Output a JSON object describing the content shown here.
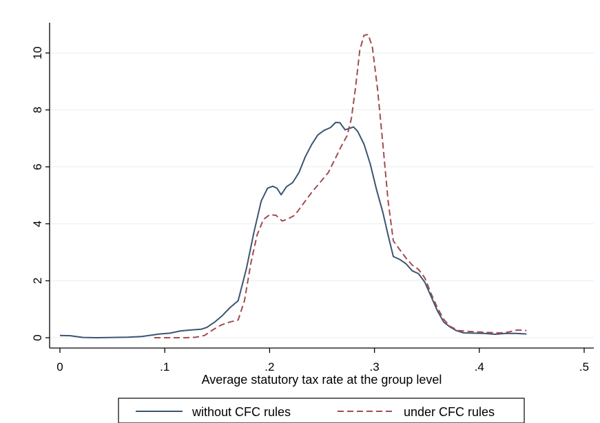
{
  "chart_data": {
    "type": "line",
    "title": "",
    "xlabel": "Average statutory tax rate at the group level",
    "ylabel": "",
    "xlim": [
      0,
      0.5
    ],
    "ylim": [
      0,
      11
    ],
    "xticks": [
      {
        "value": 0,
        "label": "0"
      },
      {
        "value": 0.1,
        "label": ".1"
      },
      {
        "value": 0.2,
        "label": ".2"
      },
      {
        "value": 0.3,
        "label": ".3"
      },
      {
        "value": 0.4,
        "label": ".4"
      },
      {
        "value": 0.5,
        "label": ".5"
      }
    ],
    "yticks": [
      {
        "value": 0,
        "label": "0"
      },
      {
        "value": 2,
        "label": "2"
      },
      {
        "value": 4,
        "label": "4"
      },
      {
        "value": 6,
        "label": "6"
      },
      {
        "value": 8,
        "label": "8"
      },
      {
        "value": 10,
        "label": "10"
      }
    ],
    "grid": "horizontal",
    "legend_position": "bottom",
    "series": [
      {
        "name": "without CFC rules",
        "color": "#3a5470",
        "dash": "solid",
        "points": [
          [
            0.0,
            0.08
          ],
          [
            0.01,
            0.07
          ],
          [
            0.022,
            0.01
          ],
          [
            0.035,
            0.0
          ],
          [
            0.05,
            0.01
          ],
          [
            0.065,
            0.02
          ],
          [
            0.078,
            0.04
          ],
          [
            0.085,
            0.08
          ],
          [
            0.095,
            0.13
          ],
          [
            0.105,
            0.16
          ],
          [
            0.115,
            0.24
          ],
          [
            0.125,
            0.27
          ],
          [
            0.135,
            0.3
          ],
          [
            0.14,
            0.36
          ],
          [
            0.148,
            0.56
          ],
          [
            0.155,
            0.78
          ],
          [
            0.162,
            1.05
          ],
          [
            0.17,
            1.3
          ],
          [
            0.178,
            2.45
          ],
          [
            0.185,
            3.7
          ],
          [
            0.192,
            4.8
          ],
          [
            0.198,
            5.25
          ],
          [
            0.203,
            5.32
          ],
          [
            0.207,
            5.25
          ],
          [
            0.211,
            5.02
          ],
          [
            0.216,
            5.3
          ],
          [
            0.222,
            5.45
          ],
          [
            0.228,
            5.8
          ],
          [
            0.234,
            6.35
          ],
          [
            0.24,
            6.78
          ],
          [
            0.246,
            7.12
          ],
          [
            0.252,
            7.28
          ],
          [
            0.258,
            7.38
          ],
          [
            0.263,
            7.56
          ],
          [
            0.267,
            7.55
          ],
          [
            0.272,
            7.3
          ],
          [
            0.276,
            7.35
          ],
          [
            0.28,
            7.4
          ],
          [
            0.284,
            7.25
          ],
          [
            0.29,
            6.8
          ],
          [
            0.296,
            6.1
          ],
          [
            0.302,
            5.2
          ],
          [
            0.308,
            4.4
          ],
          [
            0.313,
            3.6
          ],
          [
            0.318,
            2.85
          ],
          [
            0.324,
            2.75
          ],
          [
            0.33,
            2.6
          ],
          [
            0.336,
            2.35
          ],
          [
            0.342,
            2.25
          ],
          [
            0.348,
            1.95
          ],
          [
            0.354,
            1.45
          ],
          [
            0.36,
            0.95
          ],
          [
            0.366,
            0.55
          ],
          [
            0.372,
            0.38
          ],
          [
            0.378,
            0.25
          ],
          [
            0.385,
            0.17
          ],
          [
            0.395,
            0.16
          ],
          [
            0.405,
            0.15
          ],
          [
            0.415,
            0.12
          ],
          [
            0.425,
            0.15
          ],
          [
            0.435,
            0.15
          ],
          [
            0.445,
            0.13
          ]
        ]
      },
      {
        "name": "under CFC rules",
        "color": "#a24a4e",
        "dash": "dashed",
        "points": [
          [
            0.09,
            0.0
          ],
          [
            0.1,
            0.0
          ],
          [
            0.11,
            0.0
          ],
          [
            0.12,
            0.0
          ],
          [
            0.13,
            0.02
          ],
          [
            0.138,
            0.08
          ],
          [
            0.146,
            0.28
          ],
          [
            0.154,
            0.45
          ],
          [
            0.162,
            0.55
          ],
          [
            0.17,
            0.62
          ],
          [
            0.176,
            1.3
          ],
          [
            0.182,
            2.6
          ],
          [
            0.188,
            3.6
          ],
          [
            0.194,
            4.15
          ],
          [
            0.2,
            4.32
          ],
          [
            0.206,
            4.3
          ],
          [
            0.212,
            4.1
          ],
          [
            0.218,
            4.18
          ],
          [
            0.224,
            4.3
          ],
          [
            0.232,
            4.7
          ],
          [
            0.24,
            5.1
          ],
          [
            0.248,
            5.45
          ],
          [
            0.256,
            5.8
          ],
          [
            0.262,
            6.25
          ],
          [
            0.268,
            6.7
          ],
          [
            0.274,
            7.1
          ],
          [
            0.278,
            7.7
          ],
          [
            0.282,
            8.8
          ],
          [
            0.286,
            10.1
          ],
          [
            0.29,
            10.62
          ],
          [
            0.294,
            10.65
          ],
          [
            0.298,
            10.2
          ],
          [
            0.303,
            8.7
          ],
          [
            0.308,
            6.8
          ],
          [
            0.313,
            4.8
          ],
          [
            0.318,
            3.4
          ],
          [
            0.324,
            3.1
          ],
          [
            0.33,
            2.8
          ],
          [
            0.336,
            2.55
          ],
          [
            0.342,
            2.4
          ],
          [
            0.348,
            2.1
          ],
          [
            0.354,
            1.55
          ],
          [
            0.36,
            1.05
          ],
          [
            0.366,
            0.65
          ],
          [
            0.372,
            0.4
          ],
          [
            0.38,
            0.25
          ],
          [
            0.39,
            0.22
          ],
          [
            0.4,
            0.2
          ],
          [
            0.41,
            0.18
          ],
          [
            0.42,
            0.17
          ],
          [
            0.428,
            0.2
          ],
          [
            0.436,
            0.27
          ],
          [
            0.445,
            0.25
          ]
        ]
      }
    ]
  }
}
